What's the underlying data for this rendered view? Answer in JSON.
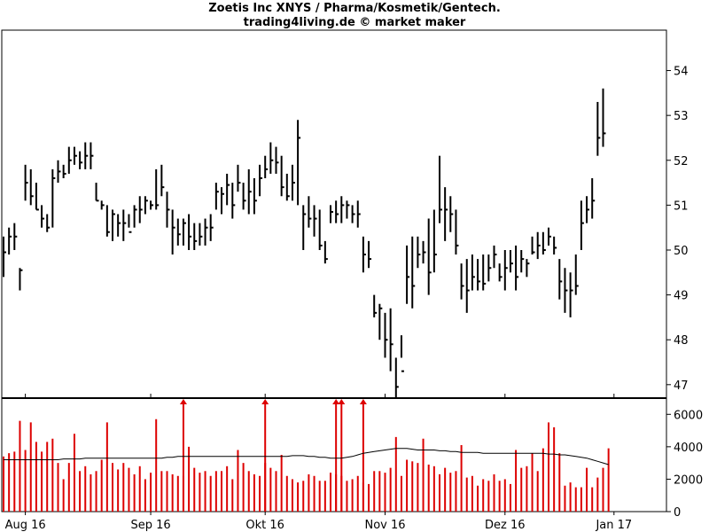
{
  "chart_data": {
    "type": "ohlc",
    "title": "Zoetis Inc XNYS / Pharma/Kosmetik/Gentech.",
    "subtitle": "trading4living.de © market maker",
    "price_axis": {
      "ylim": [
        46.7,
        54.9
      ],
      "ticks": [
        47,
        48,
        49,
        50,
        51,
        52,
        53,
        54
      ],
      "tick_labels": [
        "47",
        "48",
        "49",
        "50",
        "51",
        "52",
        "53",
        "54"
      ]
    },
    "volume_axis": {
      "ylim": [
        0,
        7000
      ],
      "ticks": [
        0,
        2000,
        4000,
        6000
      ],
      "tick_labels": [
        "0",
        "2000",
        "4000",
        "6000"
      ]
    },
    "months": [
      {
        "label": "Aug 16",
        "index": 4
      },
      {
        "label": "Sep 16",
        "index": 27
      },
      {
        "label": "Okt 16",
        "index": 48
      },
      {
        "label": "Nov 16",
        "index": 70
      },
      {
        "label": "Dez 16",
        "index": 92
      },
      {
        "label": "Jan 17",
        "index": 112
      }
    ],
    "ohlc": [
      [
        49.9,
        49.4,
        50.3,
        49.95
      ],
      [
        50.1,
        49.9,
        50.5,
        50.3
      ],
      [
        50.2,
        50.0,
        50.6,
        50.3
      ],
      [
        49.6,
        49.1,
        49.6,
        49.55
      ],
      [
        51.2,
        51.1,
        51.9,
        51.5
      ],
      [
        51.6,
        51.0,
        51.8,
        51.2
      ],
      [
        51.3,
        50.9,
        51.5,
        50.9
      ],
      [
        50.7,
        50.5,
        51.0,
        50.7
      ],
      [
        50.7,
        50.4,
        50.8,
        50.5
      ],
      [
        51.4,
        50.5,
        51.8,
        51.6
      ],
      [
        51.6,
        51.5,
        52.0,
        51.75
      ],
      [
        51.9,
        51.6,
        51.9,
        51.7
      ],
      [
        51.8,
        51.7,
        52.3,
        52.0
      ],
      [
        52.0,
        51.9,
        52.3,
        52.1
      ],
      [
        52.1,
        51.8,
        52.2,
        51.95
      ],
      [
        52.2,
        51.8,
        52.4,
        52.1
      ],
      [
        52.2,
        51.8,
        52.4,
        52.1
      ],
      [
        51.3,
        51.1,
        51.5,
        51.1
      ],
      [
        51.2,
        50.9,
        51.1,
        51.0
      ],
      [
        50.9,
        50.3,
        51.0,
        50.4
      ],
      [
        50.7,
        50.2,
        50.9,
        50.8
      ],
      [
        50.6,
        50.3,
        50.8,
        50.6
      ],
      [
        50.7,
        50.2,
        50.9,
        50.6
      ],
      [
        50.6,
        50.5,
        50.8,
        50.4
      ],
      [
        50.8,
        50.5,
        51.0,
        50.9
      ],
      [
        51.0,
        50.6,
        51.2,
        50.9
      ],
      [
        50.9,
        50.8,
        51.2,
        51.1
      ],
      [
        51.1,
        50.9,
        51.1,
        51.0
      ],
      [
        51.2,
        50.9,
        51.8,
        51.0
      ],
      [
        51.3,
        51.2,
        51.9,
        51.4
      ],
      [
        51.1,
        50.5,
        51.3,
        50.9
      ],
      [
        50.7,
        49.9,
        50.9,
        50.5
      ],
      [
        50.4,
        50.1,
        50.7,
        50.35
      ],
      [
        50.6,
        50.1,
        50.7,
        50.6
      ],
      [
        50.6,
        50.0,
        50.8,
        50.3
      ],
      [
        50.4,
        50.0,
        50.6,
        50.2
      ],
      [
        50.3,
        50.1,
        50.6,
        50.3
      ],
      [
        50.5,
        50.1,
        50.7,
        50.5
      ],
      [
        50.6,
        50.2,
        50.8,
        50.5
      ],
      [
        51.2,
        50.9,
        51.5,
        51.3
      ],
      [
        51.1,
        50.8,
        51.4,
        51.25
      ],
      [
        51.3,
        51.0,
        51.7,
        51.45
      ],
      [
        51.4,
        50.7,
        51.5,
        51.0
      ],
      [
        51.7,
        51.3,
        51.9,
        51.5
      ],
      [
        51.3,
        50.9,
        51.5,
        51.1
      ],
      [
        51.5,
        50.8,
        51.8,
        51.3
      ],
      [
        51.3,
        50.8,
        51.6,
        51.1
      ],
      [
        51.6,
        51.2,
        51.9,
        51.6
      ],
      [
        51.9,
        51.6,
        52.1,
        51.8
      ],
      [
        52.0,
        51.7,
        52.4,
        52.0
      ],
      [
        52.1,
        51.7,
        52.3,
        51.95
      ],
      [
        52.0,
        51.2,
        52.1,
        51.4
      ],
      [
        51.3,
        51.1,
        51.7,
        51.2
      ],
      [
        51.4,
        51.1,
        51.9,
        51.5
      ],
      [
        52.5,
        51.0,
        52.9,
        52.5
      ],
      [
        50.9,
        50.0,
        51.0,
        50.8
      ],
      [
        51.0,
        50.5,
        51.2,
        50.7
      ],
      [
        50.8,
        50.3,
        51.0,
        50.7
      ],
      [
        50.8,
        50.0,
        50.9,
        50.1
      ],
      [
        50.0,
        49.7,
        50.2,
        49.8
      ],
      [
        50.9,
        50.6,
        51.0,
        50.85
      ],
      [
        50.9,
        50.6,
        51.1,
        50.8
      ],
      [
        51.0,
        50.6,
        51.2,
        51.0
      ],
      [
        51.0,
        50.7,
        51.1,
        51.0
      ],
      [
        50.8,
        50.6,
        51.0,
        50.8
      ],
      [
        50.9,
        50.5,
        51.1,
        50.8
      ],
      [
        50.5,
        49.5,
        50.3,
        49.9
      ],
      [
        49.8,
        49.6,
        50.2,
        49.8
      ],
      [
        48.8,
        48.5,
        49.0,
        48.6
      ],
      [
        48.7,
        48.0,
        48.8,
        48.7
      ],
      [
        48.6,
        47.6,
        48.6,
        48.0
      ],
      [
        47.5,
        47.3,
        48.7,
        47.9
      ],
      [
        47.6,
        46.7,
        47.6,
        46.95
      ],
      [
        47.5,
        47.6,
        48.1,
        47.3
      ],
      [
        49.3,
        48.8,
        50.1,
        49.4
      ],
      [
        49.1,
        48.7,
        50.3,
        49.2
      ],
      [
        49.7,
        49.6,
        50.3,
        49.9
      ],
      [
        49.8,
        49.7,
        50.2,
        49.95
      ],
      [
        50.1,
        49.0,
        50.7,
        49.5
      ],
      [
        50.1,
        49.5,
        50.9,
        49.9
      ],
      [
        51.1,
        50.6,
        52.1,
        50.9
      ],
      [
        51.2,
        50.2,
        51.4,
        50.9
      ],
      [
        51.0,
        50.4,
        51.2,
        50.8
      ],
      [
        50.3,
        49.9,
        50.9,
        50.1
      ],
      [
        49.2,
        48.9,
        49.7,
        49.2
      ],
      [
        49.5,
        48.6,
        49.8,
        49.1
      ],
      [
        49.7,
        49.1,
        49.9,
        49.4
      ],
      [
        49.6,
        49.1,
        49.8,
        49.3
      ],
      [
        49.7,
        49.1,
        49.9,
        49.25
      ],
      [
        49.6,
        49.3,
        49.9,
        49.6
      ],
      [
        50.0,
        49.6,
        50.1,
        49.9
      ],
      [
        49.5,
        49.3,
        49.7,
        49.4
      ],
      [
        49.7,
        49.1,
        50.0,
        49.6
      ],
      [
        49.8,
        49.5,
        50.0,
        49.7
      ],
      [
        49.8,
        49.1,
        50.1,
        49.4
      ],
      [
        49.7,
        49.5,
        50.0,
        49.8
      ],
      [
        49.6,
        49.4,
        49.8,
        49.7
      ],
      [
        50.1,
        49.9,
        50.3,
        49.95
      ],
      [
        50.2,
        49.8,
        50.4,
        50.1
      ],
      [
        50.3,
        49.9,
        50.4,
        50.0
      ],
      [
        50.4,
        50.1,
        50.5,
        50.3
      ],
      [
        50.0,
        49.9,
        50.3,
        50.05
      ],
      [
        49.5,
        48.9,
        49.8,
        49.3
      ],
      [
        49.4,
        48.6,
        49.6,
        49.1
      ],
      [
        49.3,
        48.5,
        49.5,
        49.1
      ],
      [
        49.5,
        49.0,
        49.9,
        49.2
      ],
      [
        50.7,
        50.0,
        51.1,
        50.6
      ],
      [
        51.1,
        50.6,
        51.2,
        50.9
      ],
      [
        51.3,
        50.7,
        51.6,
        51.1
      ],
      [
        52.7,
        52.1,
        53.3,
        52.5
      ],
      [
        52.8,
        52.3,
        53.6,
        52.6
      ]
    ],
    "volume": [
      3400,
      3600,
      3700,
      5600,
      3800,
      5500,
      4300,
      3700,
      4300,
      4500,
      3000,
      2000,
      3000,
      4800,
      2500,
      2800,
      2300,
      2500,
      3200,
      5500,
      3000,
      2600,
      3000,
      2700,
      2300,
      2800,
      2000,
      2400,
      5700,
      2500,
      2500,
      2300,
      2200,
      2200,
      4000,
      2700,
      2400,
      2500,
      2200,
      2500,
      2500,
      2800,
      2000,
      3800,
      3000,
      2500,
      2300,
      2200,
      3000,
      2700,
      2500,
      3500,
      2200,
      2000,
      1800,
      1900,
      2300,
      2200,
      1900,
      1900,
      2400,
      2300,
      2200,
      1900,
      2000,
      2200,
      1800,
      1700,
      2500,
      2500,
      2400,
      2700,
      4600,
      2200,
      3200,
      3100,
      3000,
      4500,
      2900,
      2800,
      2300,
      2700,
      2400,
      2500,
      4100,
      2100,
      2200,
      1600,
      2000,
      1900,
      2300,
      1900,
      2000,
      1700,
      3800,
      2700,
      2800,
      3600,
      2500,
      3900,
      5500,
      5200,
      3600,
      1600,
      1800,
      1500,
      1500,
      2700,
      1500,
      2100,
      2700,
      3900
    ],
    "volume_overflow_markers": [
      33,
      48,
      61,
      62,
      66
    ],
    "volume_moving_average": [
      3200,
      3200,
      3200,
      3200,
      3200,
      3200,
      3200,
      3200,
      3200,
      3200,
      3200,
      3250,
      3250,
      3250,
      3250,
      3300,
      3300,
      3300,
      3300,
      3300,
      3300,
      3300,
      3300,
      3300,
      3300,
      3300,
      3300,
      3300,
      3300,
      3300,
      3350,
      3350,
      3400,
      3400,
      3400,
      3400,
      3400,
      3400,
      3400,
      3400,
      3400,
      3400,
      3400,
      3400,
      3400,
      3400,
      3400,
      3400,
      3400,
      3400,
      3400,
      3400,
      3400,
      3450,
      3450,
      3450,
      3400,
      3400,
      3350,
      3350,
      3300,
      3300,
      3300,
      3350,
      3400,
      3500,
      3600,
      3650,
      3700,
      3750,
      3800,
      3850,
      3900,
      3900,
      3900,
      3850,
      3800,
      3800,
      3800,
      3800,
      3750,
      3750,
      3700,
      3700,
      3650,
      3650,
      3650,
      3650,
      3600,
      3600,
      3600,
      3600,
      3600,
      3600,
      3600,
      3600,
      3600,
      3600,
      3600,
      3600,
      3550,
      3550,
      3500,
      3500,
      3450,
      3400,
      3350,
      3300,
      3200,
      3100,
      3000,
      2900
    ],
    "colors": {
      "bars": "#000000",
      "volume": "#dd0000",
      "average": "#000000",
      "frame": "#000000",
      "background": "#ffffff"
    }
  }
}
